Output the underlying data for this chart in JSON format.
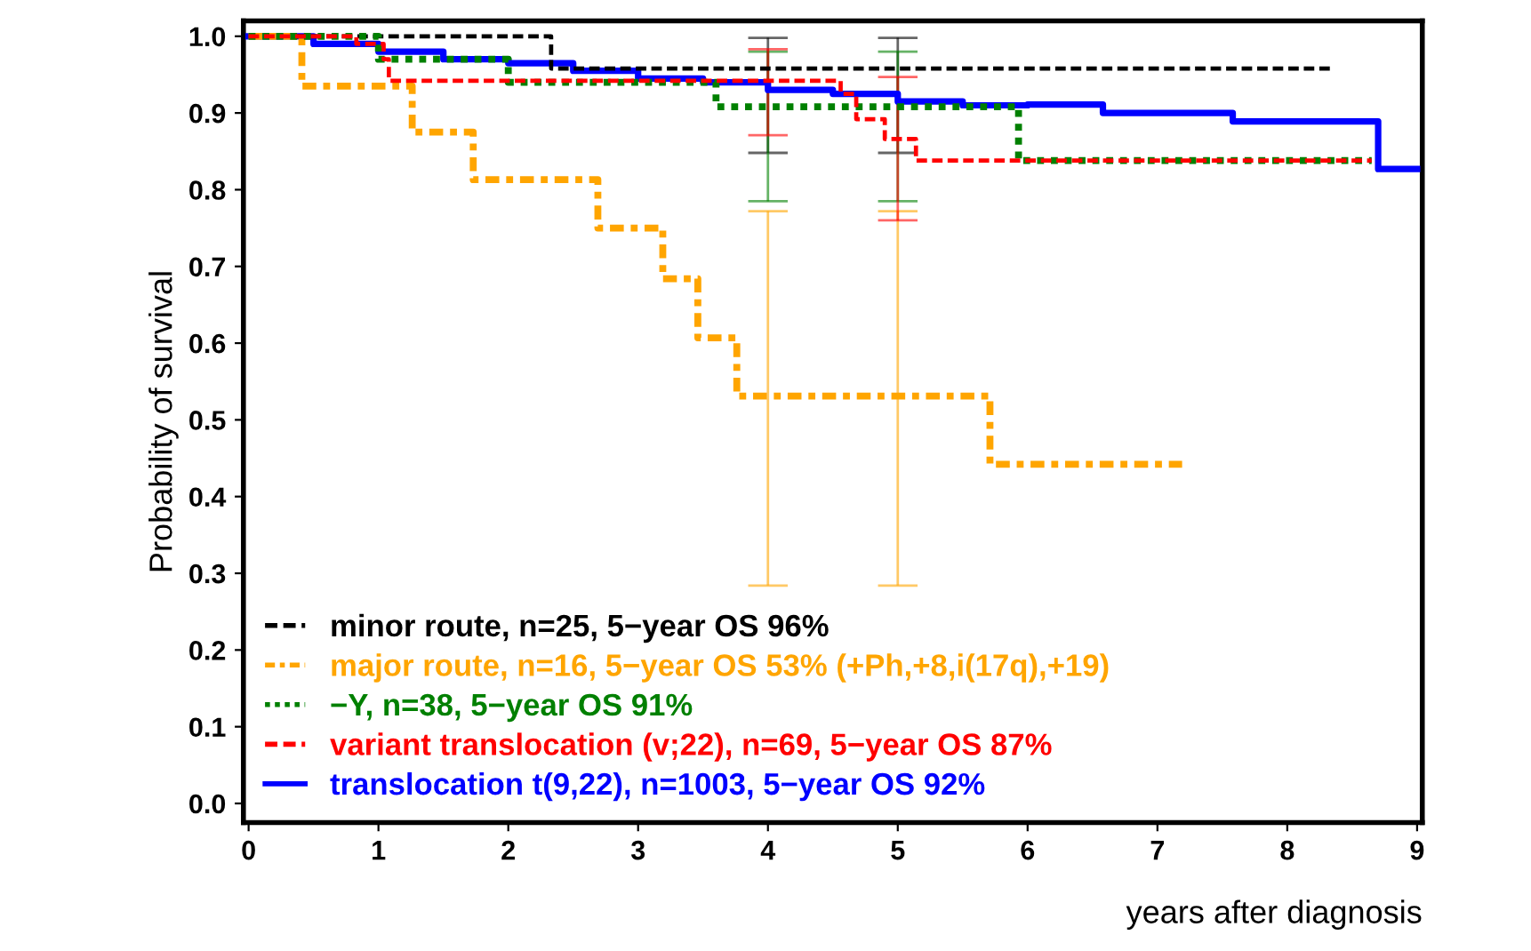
{
  "chart_data": {
    "type": "step",
    "ylabel": "Probability of survival",
    "xlabel": "years after diagnosis",
    "xlim": [
      -0.04,
      9.04
    ],
    "ylim": [
      -0.025,
      1.02
    ],
    "xticks": [
      0,
      1,
      2,
      3,
      4,
      5,
      6,
      7,
      8,
      9
    ],
    "yticks": [
      {
        "value": 0,
        "label": "0.0"
      },
      0.1,
      0.2,
      0.3,
      0.4,
      0.5,
      0.6,
      0.7,
      0.8,
      0.9,
      {
        "value": 1,
        "label": "1.0"
      }
    ],
    "legend": "bottom left",
    "grid": false,
    "series": [
      {
        "name": "minor route, n=25, 5−year OS 96%",
        "color": "#000000",
        "line_style": "dashed",
        "x": [
          0,
          2.33,
          4,
          5,
          8.36
        ],
        "values": [
          1.0,
          0.958,
          0.958,
          0.958,
          0.958
        ],
        "errors": [
          null,
          null,
          [
            0.848,
            0.998
          ],
          [
            0.848,
            0.998
          ],
          null
        ]
      },
      {
        "name": "major route, n=16, 5−year OS 53% (+Ph,+8,i(17q),+19)",
        "color": "#ffa500",
        "line_style": "dashdot",
        "x": [
          0,
          0.41,
          1.26,
          1.73,
          2.69,
          3.19,
          3.46,
          3.76,
          4,
          5,
          5.71,
          7.19
        ],
        "values": [
          1.0,
          0.935,
          0.875,
          0.813,
          0.75,
          0.684,
          0.607,
          0.531,
          0.531,
          0.531,
          0.442,
          0.442
        ],
        "errors": [
          null,
          null,
          null,
          null,
          null,
          null,
          null,
          null,
          [
            0.284,
            0.772
          ],
          [
            0.284,
            0.772
          ],
          null,
          null
        ]
      },
      {
        "name": "−Y, n=38, 5−year OS 91%",
        "color": "#008000",
        "line_style": "dotted",
        "x": [
          0,
          1.0,
          2.0,
          3.6,
          4,
          5,
          5.93,
          8.65
        ],
        "values": [
          1.0,
          0.97,
          0.94,
          0.908,
          0.908,
          0.908,
          0.838,
          0.838
        ],
        "errors": [
          null,
          null,
          null,
          null,
          [
            0.785,
            0.98
          ],
          [
            0.785,
            0.98
          ],
          null,
          null
        ]
      },
      {
        "name": "variant translocation (v;22), n=69, 5−year OS 87%",
        "color": "#ff0000",
        "line_style": "dashed",
        "x": [
          0,
          0.83,
          1.04,
          1.08,
          4,
          4.56,
          4.68,
          4.9,
          5,
          5.14,
          8.65
        ],
        "values": [
          1.0,
          0.99,
          0.97,
          0.942,
          0.942,
          0.925,
          0.892,
          0.866,
          0.866,
          0.838,
          0.838
        ],
        "errors": [
          null,
          null,
          null,
          null,
          [
            0.871,
            0.983
          ],
          null,
          null,
          null,
          [
            0.76,
            0.947
          ],
          null,
          null
        ]
      },
      {
        "name": "translocation t(9,22), n=1003, 5−year OS 92%",
        "color": "#0000ff",
        "line_style": "solid",
        "x": [
          0,
          0.5,
          1,
          1.5,
          2,
          2.5,
          3,
          3.5,
          4,
          4.5,
          5,
          5.5,
          6,
          6.58,
          7.58,
          8.7,
          9.0
        ],
        "values": [
          1.0,
          0.99,
          0.98,
          0.97,
          0.965,
          0.955,
          0.945,
          0.94,
          0.93,
          0.925,
          0.915,
          0.91,
          0.911,
          0.9,
          0.889,
          0.827,
          0.827
        ]
      }
    ]
  }
}
